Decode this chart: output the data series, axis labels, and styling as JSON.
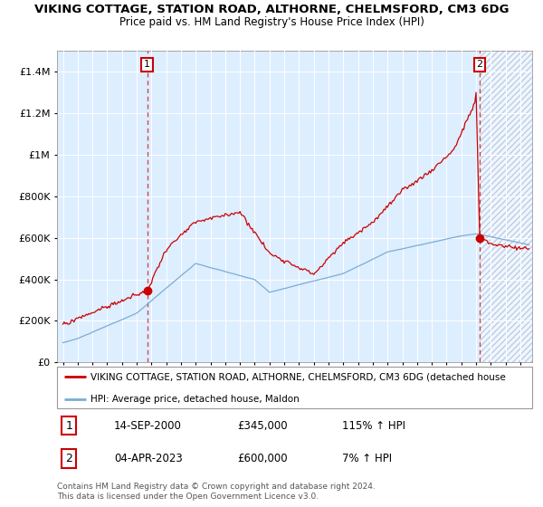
{
  "title": "VIKING COTTAGE, STATION ROAD, ALTHORNE, CHELMSFORD, CM3 6DG",
  "subtitle": "Price paid vs. HM Land Registry's House Price Index (HPI)",
  "legend_line1": "VIKING COTTAGE, STATION ROAD, ALTHORNE, CHELMSFORD, CM3 6DG (detached house",
  "legend_line2": "HPI: Average price, detached house, Maldon",
  "annotation1_date": "14-SEP-2000",
  "annotation1_price": "£345,000",
  "annotation1_hpi": "115% ↑ HPI",
  "annotation2_date": "04-APR-2023",
  "annotation2_price": "£600,000",
  "annotation2_hpi": "7% ↑ HPI",
  "footer": "Contains HM Land Registry data © Crown copyright and database right 2024.\nThis data is licensed under the Open Government Licence v3.0.",
  "red_color": "#cc0000",
  "blue_color": "#7aadd4",
  "bg_color": "#ddeeff",
  "ylim_max": 1500000,
  "purchase1_year": 2000.71,
  "purchase1_value": 345000,
  "purchase2_year": 2023.25,
  "purchase2_value": 600000
}
